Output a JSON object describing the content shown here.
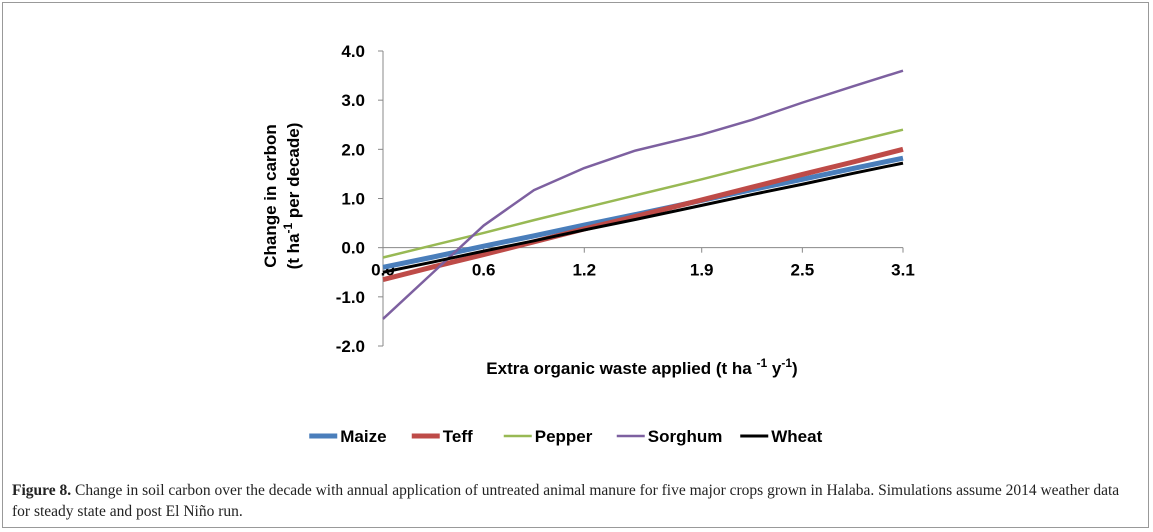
{
  "chart_data": {
    "type": "line",
    "ylabel": [
      "Change in carbon",
      "(t ha",
      "-1",
      " per decade)"
    ],
    "xlabel": [
      "Extra organic waste applied (t ha ",
      "-1",
      " y",
      "-1",
      ")"
    ],
    "x": [
      0,
      0.3,
      0.6,
      0.9,
      1.2,
      1.5,
      1.9,
      2.2,
      2.5,
      2.8,
      3.1
    ],
    "xlim": [
      0,
      3.1
    ],
    "xticks": [
      {
        "value": 0,
        "label": "0.0"
      },
      0.6,
      1.2,
      1.9,
      2.5,
      3.1
    ],
    "ylim": [
      -2,
      4
    ],
    "yticks": [
      {
        "value": -2,
        "label": "-2.0"
      },
      {
        "value": -1,
        "label": "-1.0"
      },
      {
        "value": 0,
        "label": "0.0"
      },
      {
        "value": 1,
        "label": "1.0"
      },
      {
        "value": 2,
        "label": "2.0"
      },
      {
        "value": 3,
        "label": "3.0"
      },
      {
        "value": 4,
        "label": "4.0"
      }
    ],
    "grid": false,
    "legend": "bottom",
    "series": [
      {
        "name": "Maize",
        "color": "#4a7ebb",
        "line_width": 5,
        "values": [
          -0.4,
          -0.19,
          0.03,
          0.24,
          0.46,
          0.67,
          0.96,
          1.18,
          1.39,
          1.61,
          1.82
        ]
      },
      {
        "name": "Teff",
        "color": "#be4b48",
        "line_width": 5,
        "values": [
          -0.65,
          -0.39,
          -0.14,
          0.12,
          0.38,
          0.63,
          0.97,
          1.23,
          1.49,
          1.74,
          2.0
        ]
      },
      {
        "name": "Pepper",
        "color": "#98b954",
        "line_width": 2.5,
        "values": [
          -0.2,
          0.05,
          0.3,
          0.56,
          0.81,
          1.06,
          1.39,
          1.65,
          1.9,
          2.15,
          2.4
        ]
      },
      {
        "name": "Sorghum",
        "color": "#7d60a0",
        "line_width": 2.5,
        "values": [
          -1.45,
          -0.5,
          0.45,
          1.17,
          1.62,
          1.97,
          2.3,
          2.6,
          2.95,
          3.28,
          3.6
        ]
      },
      {
        "name": "Wheat",
        "color": "#000000",
        "line_width": 3,
        "values": [
          -0.5,
          -0.29,
          -0.07,
          0.14,
          0.36,
          0.57,
          0.86,
          1.08,
          1.29,
          1.51,
          1.72
        ]
      }
    ]
  },
  "caption": {
    "label": "Figure 8.",
    "text": " Change in soil carbon over the decade with annual application of untreated animal manure for five major crops grown in Halaba. Simulations assume 2014 weather data for steady state and post El Niño run."
  }
}
